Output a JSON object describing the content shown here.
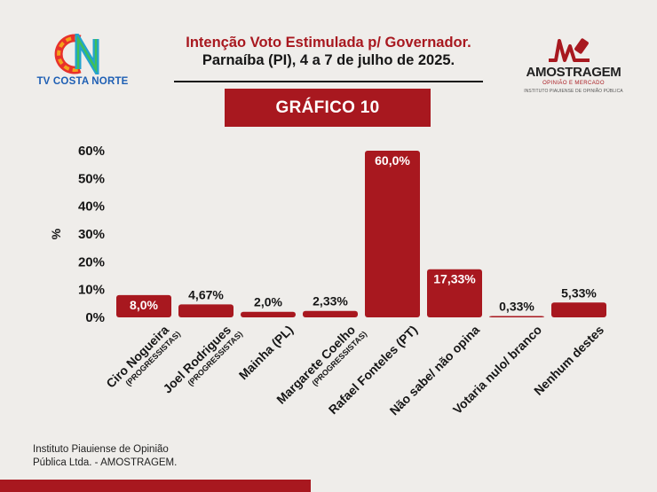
{
  "header": {
    "title": "Intenção Voto Estimulada p/ Governador.",
    "subtitle": "Parnaíba (PI), 4 a 7 de julho de 2025.",
    "banner": "GRÁFICO 10"
  },
  "logos": {
    "left": {
      "mark_text": "CN",
      "name": "TV COSTA NORTE"
    },
    "right": {
      "name": "AMOSTRAGEM",
      "line1": "OPINIÃO E MERCADO",
      "line2": "INSTITUTO PIAUIENSE DE OPINIÃO PÚBLICA"
    }
  },
  "footer": {
    "line1": "Instituto Piauiense de Opinião",
    "line2": "Pública Ltda. - AMOSTRAGEM."
  },
  "colors": {
    "accent": "#a8181f",
    "bar": "#a8181f",
    "text": "#161616",
    "background": "#efedea"
  },
  "chart_data": {
    "type": "bar",
    "ylabel": "%",
    "xlabel": "",
    "ylim": [
      0,
      60
    ],
    "yticks": [
      "0%",
      "10%",
      "20%",
      "30%",
      "40%",
      "50%",
      "60%"
    ],
    "grid": false,
    "categories": [
      {
        "name": "Ciro Nogueira",
        "party": "(PROGRESSISTAS)"
      },
      {
        "name": "Joel Rodrigues",
        "party": "(PROGRESSISTAS)"
      },
      {
        "name": "Mainha (PL)",
        "party": ""
      },
      {
        "name": "Margarete Coelho",
        "party": "(PROGRESSISTAS)"
      },
      {
        "name": "Rafael Fonteles (PT)",
        "party": ""
      },
      {
        "name": "Não sabe/ não opina",
        "party": ""
      },
      {
        "name": "Votaria nulo/ branco",
        "party": ""
      },
      {
        "name": "Nenhum destes",
        "party": ""
      }
    ],
    "values": [
      8.0,
      4.67,
      2.0,
      2.33,
      60.0,
      17.33,
      0.33,
      5.33
    ],
    "data_labels": [
      "8,0%",
      "4,67%",
      "2,0%",
      "2,33%",
      "60,0%",
      "17,33%",
      "0,33%",
      "5,33%"
    ]
  }
}
